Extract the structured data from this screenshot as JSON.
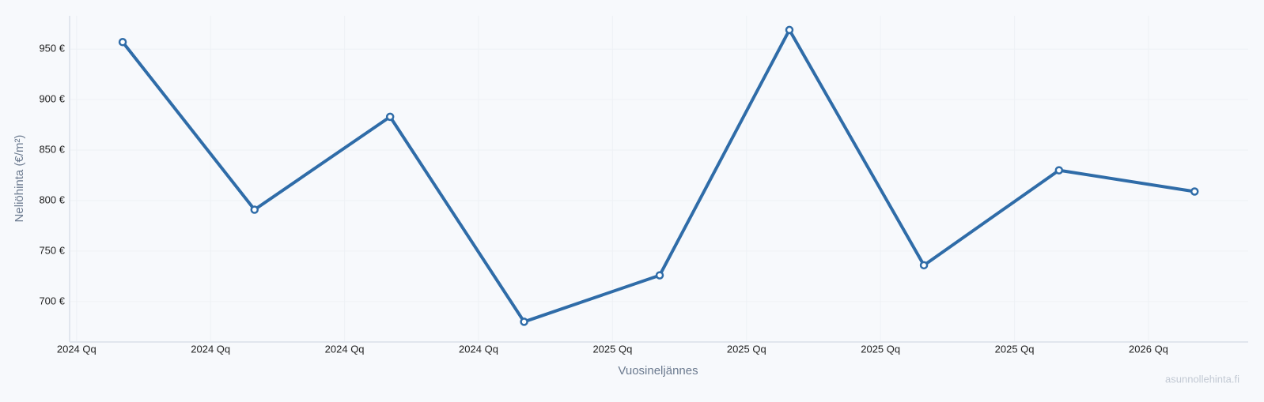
{
  "chart_data": {
    "type": "line",
    "x_label": "Vuosineljännes",
    "y_label": "Neliöhinta (€/m²)",
    "watermark": "asunnollehinta.fi",
    "x": [
      2024.086,
      2024.332,
      2024.585,
      2024.835,
      2025.088,
      2025.33,
      2025.581,
      2025.833,
      2026.086
    ],
    "series": [
      {
        "color": "#2f6ca8",
        "values": [
          957,
          791,
          883,
          680,
          726,
          969,
          736,
          830,
          809
        ]
      }
    ],
    "xlim": [
      2023.987,
      2026.186
    ],
    "xticks": [
      {
        "value": 2024,
        "label": "2024 Qq"
      },
      {
        "value": 2024.25,
        "label": "2024 Qq"
      },
      {
        "value": 2024.5,
        "label": "2024 Qq"
      },
      {
        "value": 2024.75,
        "label": "2024 Qq"
      },
      {
        "value": 2025,
        "label": "2025 Qq"
      },
      {
        "value": 2025.25,
        "label": "2025 Qq"
      },
      {
        "value": 2025.5,
        "label": "2025 Qq"
      },
      {
        "value": 2025.75,
        "label": "2025 Qq"
      },
      {
        "value": 2026,
        "label": "2026 Qq"
      }
    ],
    "ylim": [
      660,
      983
    ],
    "yticks": [
      {
        "value": 700,
        "label": "700 €"
      },
      {
        "value": 750,
        "label": "750 €"
      },
      {
        "value": 800,
        "label": "800 €"
      },
      {
        "value": 850,
        "label": "850 €"
      },
      {
        "value": 900,
        "label": "900 €"
      },
      {
        "value": 950,
        "label": "950 €"
      }
    ],
    "grid": true
  }
}
